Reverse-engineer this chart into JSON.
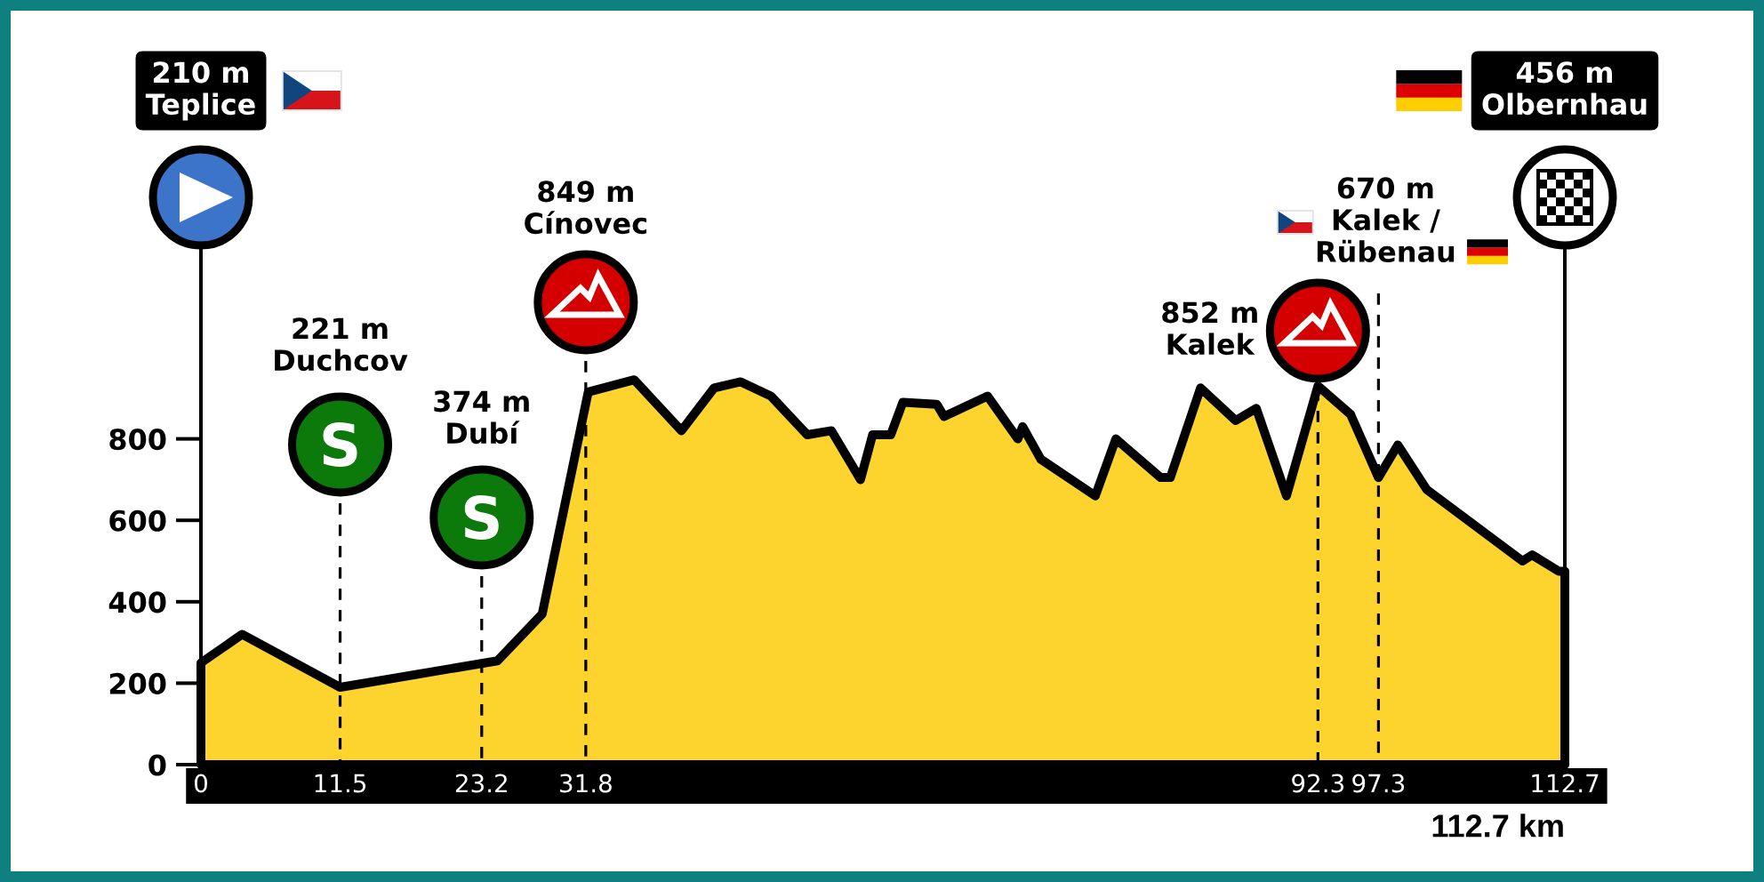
{
  "chart_data": {
    "type": "area",
    "x": [
      0,
      3.4,
      11.5,
      24.5,
      28.2,
      32.0,
      35.8,
      39.7,
      42.4,
      44.6,
      47.1,
      50.1,
      52.1,
      54.5,
      55.5,
      57.0,
      58.0,
      60.8,
      61.4,
      65.0,
      67.5,
      67.9,
      69.4,
      73.9,
      75.6,
      79.3,
      80.1,
      82.6,
      85.5,
      87.2,
      89.7,
      92.3,
      95.0,
      97.3,
      98.9,
      101.3,
      109.2,
      110.0,
      112.2,
      112.7
    ],
    "series": [
      {
        "color": "#fdd32e",
        "values": [
          250,
          320,
          190,
          255,
          370,
          915,
          945,
          820,
          925,
          940,
          905,
          810,
          820,
          700,
          810,
          810,
          890,
          885,
          855,
          905,
          800,
          830,
          750,
          660,
          800,
          705,
          705,
          925,
          845,
          875,
          660,
          930,
          860,
          705,
          785,
          675,
          500,
          515,
          475,
          475
        ]
      }
    ],
    "xlim": [
      0,
      112.7
    ],
    "xticks": [
      0,
      11.5,
      23.2,
      31.8,
      92.3,
      97.3,
      112.7
    ],
    "ylim": [
      0,
      1275
    ],
    "yticks": [
      0,
      200,
      400,
      600,
      800
    ],
    "ref_lines": [
      {
        "axis": "x",
        "value": 11.5,
        "label": "221 m\nDuchcov",
        "line_style": "dashed"
      },
      {
        "axis": "x",
        "value": 23.2,
        "label": "374 m\nDubí",
        "line_style": "dashed"
      },
      {
        "axis": "x",
        "value": 31.8,
        "label": "849 m\nCínovec",
        "line_style": "dashed"
      },
      {
        "axis": "x",
        "value": 92.3,
        "label": "852 m\nKalek",
        "line_style": "dashed"
      },
      {
        "axis": "x",
        "value": 97.3,
        "label": "670 m\nKalek /\nRübenau",
        "line_style": "dashed"
      },
      {
        "axis": "x",
        "value": 112.7,
        "label": "456 m\nOlbernhau",
        "line_style": "solid"
      }
    ],
    "annotations": [
      "210 m\nTeplice",
      "112.7 km"
    ]
  }
}
